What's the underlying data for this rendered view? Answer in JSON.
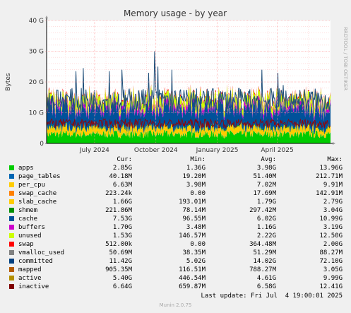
{
  "chart_data": {
    "type": "area",
    "title": "Memory usage - by year",
    "ylabel": "Bytes",
    "side_label": "RRDTOOL / TOBI OETIKER",
    "ylim": [
      0,
      40
    ],
    "y_unit": "G",
    "y_ticks": [
      {
        "v": 0,
        "label": "0"
      },
      {
        "v": 10,
        "label": "10 G"
      },
      {
        "v": 20,
        "label": "20 G"
      },
      {
        "v": 30,
        "label": "30 G"
      },
      {
        "v": 40,
        "label": "40 G"
      }
    ],
    "x_range": [
      "2024-05-04",
      "2025-07-04"
    ],
    "x_ticks": [
      {
        "date": "2024-07-15",
        "label": "July 2024"
      },
      {
        "date": "2024-10-15",
        "label": "October 2024"
      },
      {
        "date": "2025-01-15",
        "label": "January 2025"
      },
      {
        "date": "2025-04-15",
        "label": "April 2025"
      }
    ],
    "stack_estimate_G": [
      {
        "name": "apps",
        "mean": 3.0
      },
      {
        "name": "page_tables",
        "mean": 0.05
      },
      {
        "name": "per_cpu",
        "mean": 0.01
      },
      {
        "name": "swap_cache",
        "mean": 0.02
      },
      {
        "name": "slab_cache",
        "mean": 1.8
      },
      {
        "name": "shmem",
        "mean": 0.3
      },
      {
        "name": "cache",
        "mean": 6.0
      },
      {
        "name": "buffers",
        "mean": 1.2
      },
      {
        "name": "unused",
        "mean": 2.2
      },
      {
        "name": "swap",
        "mean": 0.4
      }
    ],
    "committed_mean_G": 14.0,
    "committed_peaks_G": [
      {
        "date": "2024-06-22",
        "value": 31.5
      },
      {
        "date": "2024-06-17",
        "value": 23.5
      },
      {
        "date": "2024-06-28",
        "value": 24.5
      },
      {
        "date": "2024-08-06",
        "value": 23.5
      },
      {
        "date": "2024-08-25",
        "value": 24.0
      },
      {
        "date": "2024-10-04",
        "value": 23.0
      },
      {
        "date": "2024-10-13",
        "value": 30.0
      },
      {
        "date": "2024-10-18",
        "value": 25.0
      },
      {
        "date": "2024-11-08",
        "value": 24.0
      },
      {
        "date": "2025-02-06",
        "value": 23.0
      },
      {
        "date": "2025-03-23",
        "value": 24.0
      },
      {
        "date": "2025-04-16",
        "value": 23.0
      },
      {
        "date": "2025-04-24",
        "value": 19.0
      }
    ]
  },
  "colors": {
    "apps": "#00cc00",
    "page_tables": "#0066b3",
    "per_cpu": "#ff8000",
    "swap_cache": "#ffcc00",
    "slab_cache": "#ffcc00",
    "shmem": "#008f00",
    "cache": "#00519a",
    "buffers": "#cc00cc",
    "unused": "#ccff00",
    "swap": "#ff0000",
    "vmalloc_used": "#888888",
    "committed": "#1f4e79",
    "mapped": "#993300",
    "active": "#990099",
    "inactive": "#990000",
    "background": "#f0f0f0",
    "plot_bg": "#ffffff",
    "grid": "#ff9999"
  },
  "legend": {
    "headers": {
      "cur": "Cur:",
      "min": "Min:",
      "avg": "Avg:",
      "max": "Max:"
    },
    "rows": [
      {
        "name": "apps",
        "color": "#00cc00",
        "cur": "2.85G",
        "min": "1.36G",
        "avg": "3.98G",
        "max": "13.96G"
      },
      {
        "name": "page_tables",
        "color": "#0066b3",
        "cur": "40.18M",
        "min": "19.20M",
        "avg": "51.40M",
        "max": "212.71M"
      },
      {
        "name": "per_cpu",
        "color": "#ffcc00",
        "cur": "6.63M",
        "min": "3.98M",
        "avg": "7.02M",
        "max": "9.91M"
      },
      {
        "name": "swap_cache",
        "color": "#ff8000",
        "cur": "223.24k",
        "min": "0.00",
        "avg": "17.69M",
        "max": "142.91M"
      },
      {
        "name": "slab_cache",
        "color": "#ffcc00",
        "cur": "1.66G",
        "min": "193.01M",
        "avg": "1.79G",
        "max": "2.79G"
      },
      {
        "name": "shmem",
        "color": "#008f00",
        "cur": "221.86M",
        "min": "78.14M",
        "avg": "297.42M",
        "max": "3.04G"
      },
      {
        "name": "cache",
        "color": "#00519a",
        "cur": "7.53G",
        "min": "96.55M",
        "avg": "6.02G",
        "max": "10.99G"
      },
      {
        "name": "buffers",
        "color": "#cc00cc",
        "cur": "1.70G",
        "min": "3.48M",
        "avg": "1.16G",
        "max": "3.19G"
      },
      {
        "name": "unused",
        "color": "#ccff00",
        "cur": "1.53G",
        "min": "146.57M",
        "avg": "2.22G",
        "max": "12.50G"
      },
      {
        "name": "swap",
        "color": "#ff0000",
        "cur": "512.00k",
        "min": "0.00",
        "avg": "364.48M",
        "max": "2.00G"
      },
      {
        "name": "vmalloc_used",
        "color": "#808080",
        "cur": "50.69M",
        "min": "38.35M",
        "avg": "51.29M",
        "max": "88.27M"
      },
      {
        "name": "committed",
        "color": "#004080",
        "cur": "11.42G",
        "min": "5.02G",
        "avg": "14.02G",
        "max": "72.10G"
      },
      {
        "name": "mapped",
        "color": "#b35a00",
        "cur": "905.35M",
        "min": "116.51M",
        "avg": "788.27M",
        "max": "3.05G"
      },
      {
        "name": "active",
        "color": "#b38f00",
        "cur": "5.40G",
        "min": "446.54M",
        "avg": "4.61G",
        "max": "9.99G"
      },
      {
        "name": "inactive",
        "color": "#800000",
        "cur": "6.64G",
        "min": "659.87M",
        "avg": "6.58G",
        "max": "12.41G"
      }
    ]
  },
  "footer": {
    "last_update": "Last update: Fri Jul  4 19:00:01 2025",
    "version": "Munin 2.0.75"
  }
}
